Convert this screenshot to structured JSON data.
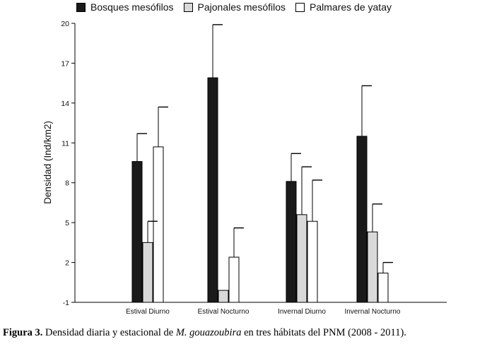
{
  "chart_data": {
    "type": "bar",
    "categories": [
      "Estival Diurno",
      "Estival Nocturno",
      "Invernal Diurno",
      "Invernal Nocturno"
    ],
    "series": [
      {
        "name": "Bosques mesófilos",
        "color": "#1a1a1a",
        "values": [
          9.6,
          15.9,
          8.1,
          11.5
        ],
        "errors": [
          2.1,
          4.0,
          2.1,
          3.8
        ]
      },
      {
        "name": "Pajonales mesófilos",
        "color": "#d9d9d9",
        "values": [
          3.5,
          -0.1,
          5.6,
          4.3
        ],
        "errors": [
          1.6,
          0.0,
          3.6,
          2.1
        ]
      },
      {
        "name": "Palmares de yatay",
        "color": "#ffffff",
        "values": [
          10.7,
          2.4,
          5.1,
          1.2
        ],
        "errors": [
          3.0,
          2.2,
          3.1,
          0.8
        ]
      }
    ],
    "yticks": [
      -1,
      2,
      5,
      8,
      11,
      14,
      17,
      20
    ],
    "ylim": [
      -1,
      20
    ],
    "ylabel": "Densidad (Ind/km2)",
    "xlabel": "",
    "legend_position": "top"
  },
  "caption": {
    "label": "Figura 3.",
    "text_before": " Densidad diaria y estacional de ",
    "species": "M. gouazoubira",
    "text_after": " en tres hábitats del PNM (2008 - 2011)."
  }
}
